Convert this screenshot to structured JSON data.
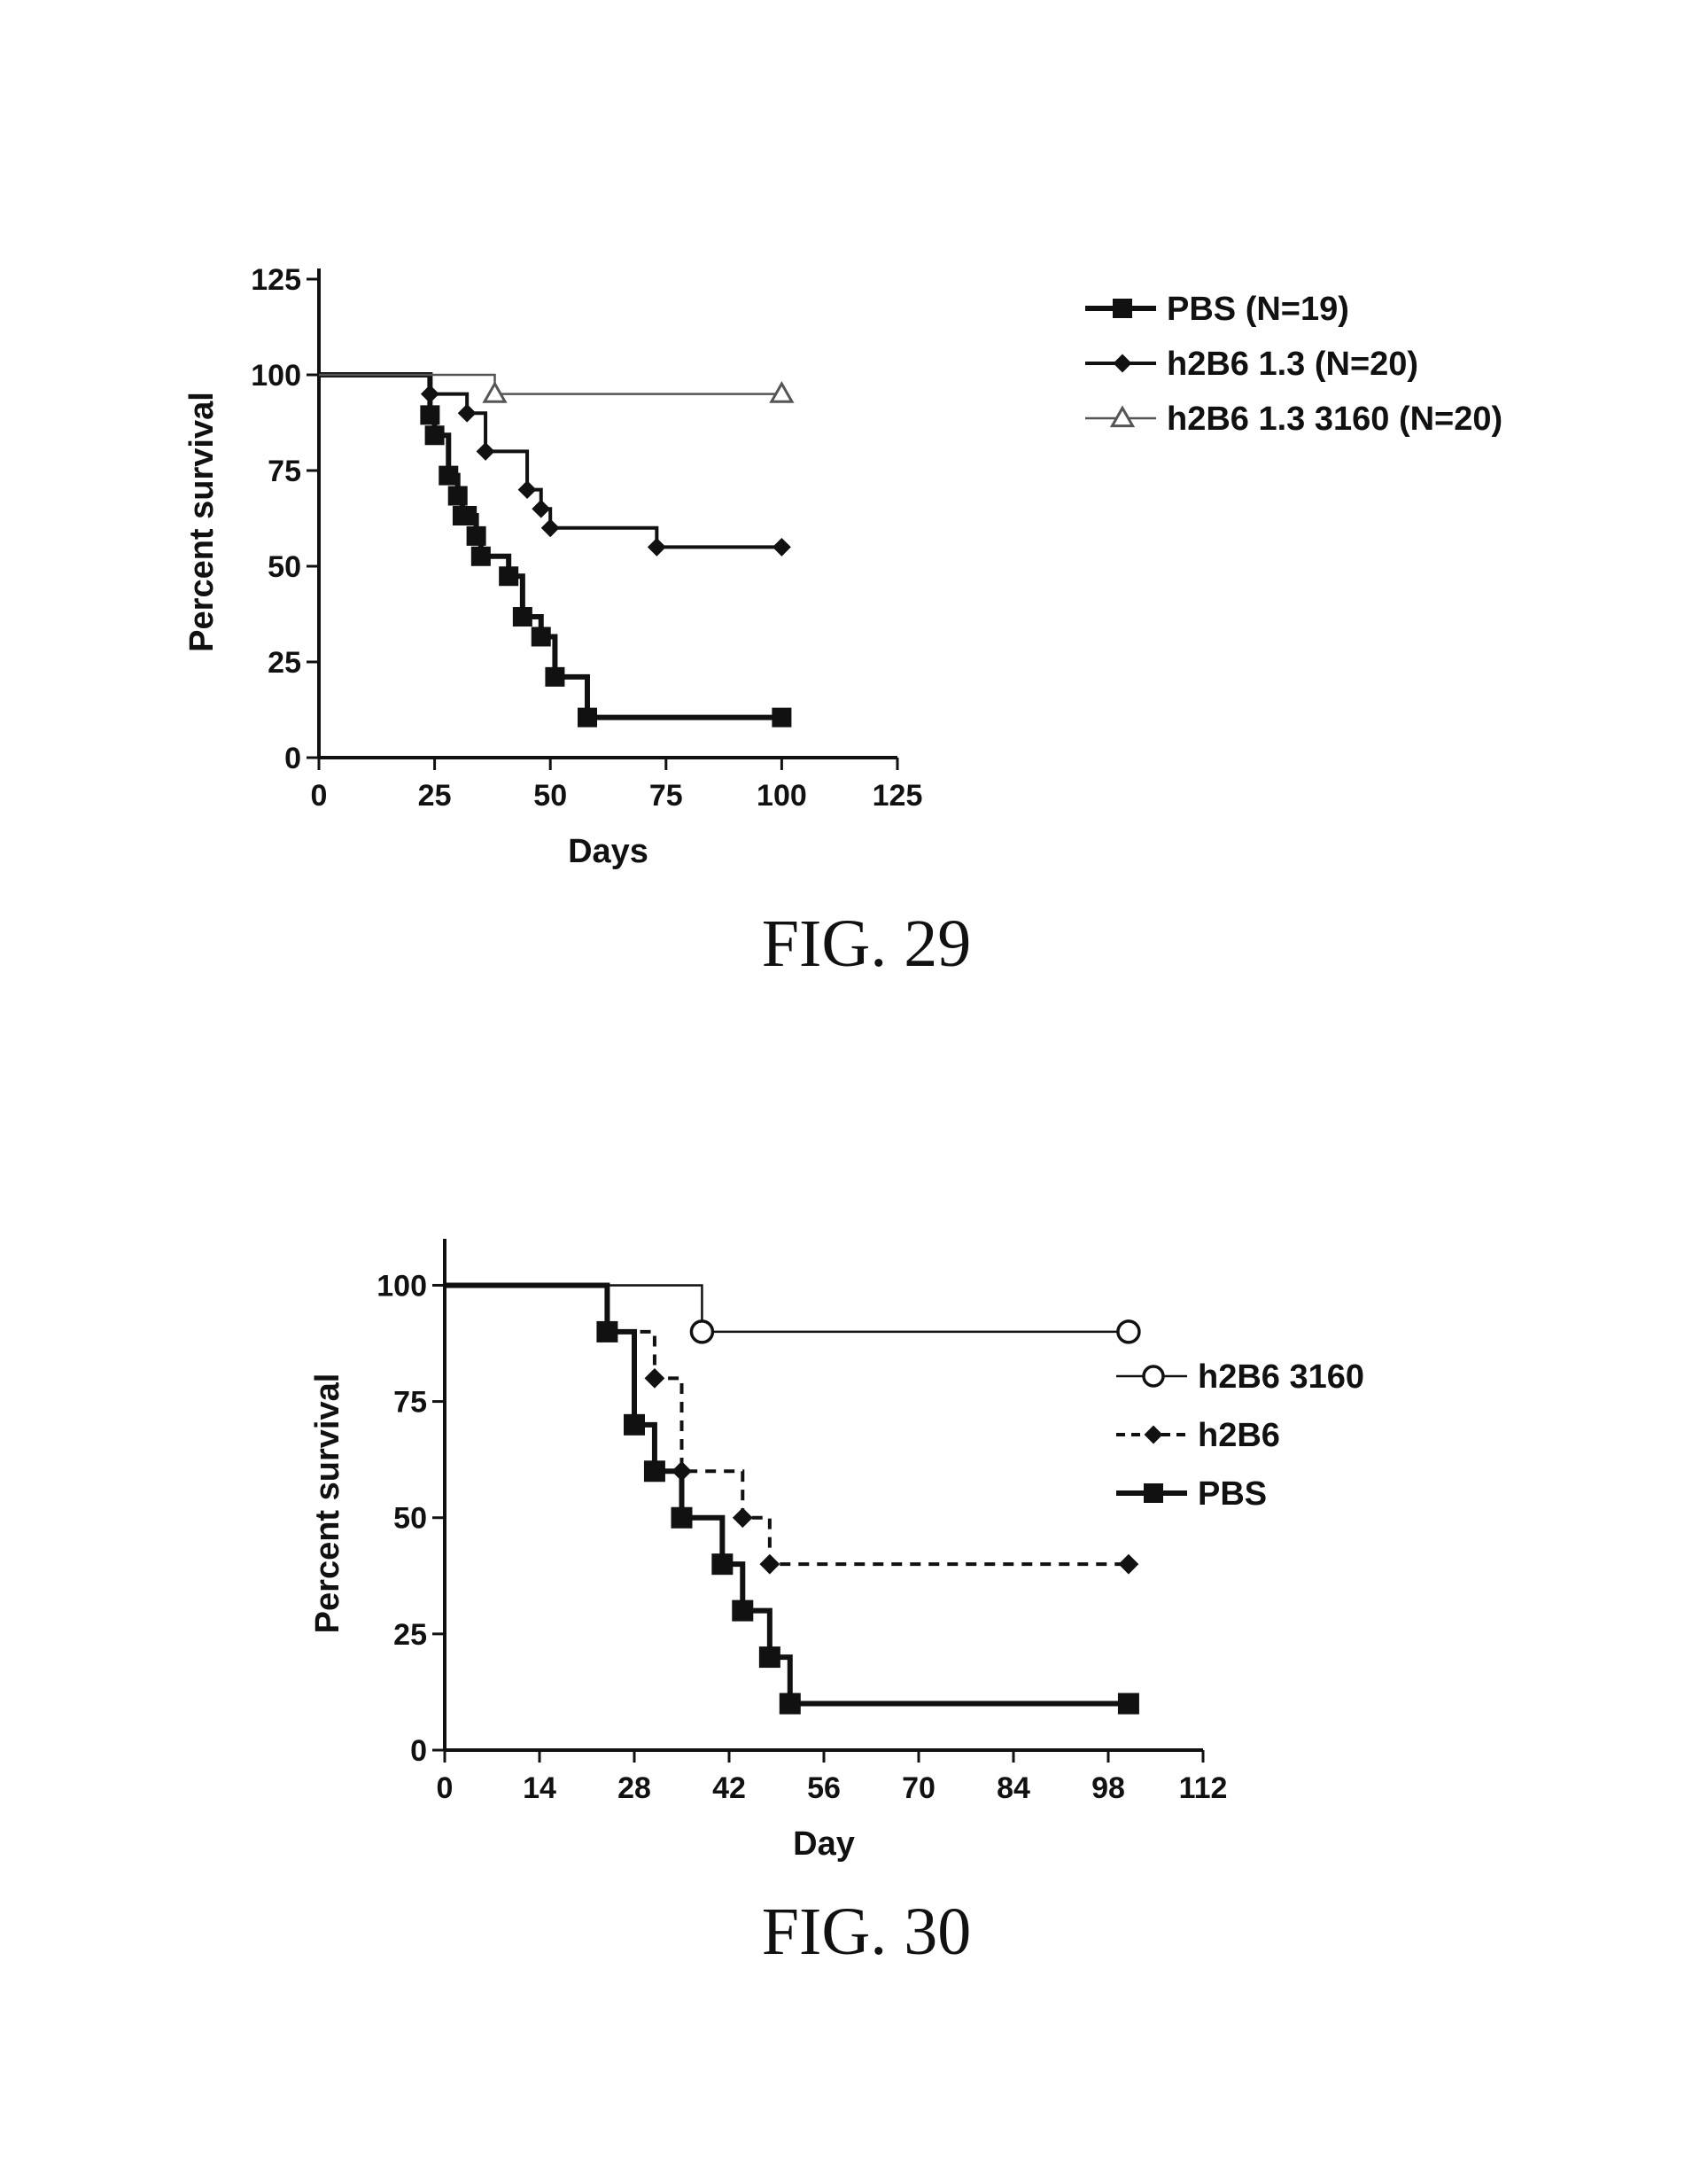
{
  "chart_data": [
    {
      "type": "line",
      "step": true,
      "xlabel": "Days",
      "ylabel": "Percent survival",
      "xlim": [
        0,
        125
      ],
      "ylim": [
        0,
        125
      ],
      "xticks": [
        0,
        25,
        50,
        75,
        100,
        125
      ],
      "yticks": [
        0,
        25,
        50,
        75,
        100,
        125
      ],
      "caption": "FIG. 29",
      "legend_position": "right",
      "series": [
        {
          "name": "PBS (N=19)",
          "marker": "square",
          "color": "#111111",
          "line_width": "heavy",
          "x": [
            0,
            24,
            25,
            28,
            30,
            31,
            32,
            34,
            35,
            41,
            44,
            48,
            51,
            58,
            100
          ],
          "y": [
            100,
            89.5,
            84.2,
            73.7,
            68.4,
            63.2,
            63.2,
            57.9,
            52.6,
            47.4,
            36.8,
            31.6,
            21.1,
            10.5,
            10.5
          ]
        },
        {
          "name": "h2B6 1.3 (N=20)",
          "marker": "diamond",
          "color": "#111111",
          "line_width": "medium",
          "x": [
            0,
            24,
            32,
            36,
            45,
            48,
            50,
            73,
            100
          ],
          "y": [
            100,
            95,
            90,
            80,
            70,
            65,
            60,
            55,
            55
          ]
        },
        {
          "name": "h2B6 1.3 3160 (N=20)",
          "marker": "triangle",
          "color": "#555555",
          "line_width": "thin",
          "x": [
            0,
            38,
            100
          ],
          "y": [
            100,
            95,
            95
          ]
        }
      ]
    },
    {
      "type": "line",
      "step": true,
      "xlabel": "Day",
      "ylabel": "Percent survival",
      "xlim": [
        0,
        112
      ],
      "ylim": [
        0,
        110
      ],
      "xticks": [
        0,
        14,
        28,
        42,
        56,
        70,
        84,
        98,
        112
      ],
      "yticks": [
        0,
        25,
        50,
        75,
        100
      ],
      "caption": "FIG. 30",
      "legend_position": "right",
      "series": [
        {
          "name": "h2B6 3160",
          "marker": "circle-open",
          "color": "#111111",
          "line_width": "thin",
          "dashed": false,
          "x": [
            0,
            38,
            101
          ],
          "y": [
            100,
            90,
            90
          ]
        },
        {
          "name": "h2B6",
          "marker": "diamond",
          "color": "#111111",
          "line_width": "medium",
          "dashed": true,
          "x": [
            0,
            24,
            31,
            35,
            44,
            48,
            101
          ],
          "y": [
            100,
            90,
            80,
            60,
            50,
            40,
            40
          ]
        },
        {
          "name": "PBS",
          "marker": "square",
          "color": "#111111",
          "line_width": "heavy",
          "dashed": false,
          "x": [
            0,
            24,
            28,
            31,
            35,
            41,
            44,
            48,
            51,
            101
          ],
          "y": [
            100,
            90,
            70,
            60,
            50,
            40,
            30,
            20,
            10,
            10
          ]
        }
      ]
    }
  ]
}
